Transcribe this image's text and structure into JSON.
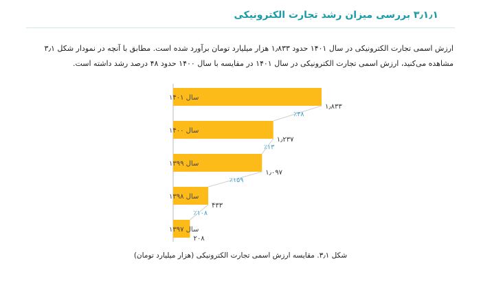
{
  "section": {
    "heading": "۳٫۱٫۱ بررسی میزان رشد تجارت الکترونیکی",
    "paragraph_line1": "ارزش اسمی تجارت الکترونیکی در سال ۱۴۰۱ حدود ۱٫۸۳۳ هزار میلیارد تومان برآورد شده است. مطابق با آنچه در نمودار شکل ۳٫۱",
    "paragraph_line2": "مشاهده می‌کنید، ارزش اسمی تجارت الکترونیکی در سال ۱۴۰۱ در مقایسه با سال ۱۴۰۰ حدود ۴۸ درصد رشد داشته است."
  },
  "colors": {
    "bar": "#fdbb1a",
    "growth": "#3a9bcc",
    "axis": "#b8b8b8",
    "connector": "#cfcfcf"
  },
  "chart_data": {
    "type": "bar",
    "orientation": "horizontal",
    "categories": [
      "سال ۱۴۰۱",
      "سال ۱۴۰۰",
      "سال ۱۳۹۹",
      "سال ۱۳۹۸",
      "سال ۱۳۹۷"
    ],
    "values": [
      1833,
      1237,
      1097,
      433,
      208
    ],
    "value_labels": [
      "۱٫۸۳۳",
      "۱٫۲۳۷",
      "۱٫۰۹۷",
      "۴۳۳",
      "۲۰۸"
    ],
    "growth_labels": [
      "٪۴۸",
      "٪۱۳",
      "٪۱۵۹",
      "٪۱۰۸"
    ],
    "xlim": [
      0,
      1833
    ],
    "grid": false,
    "caption": "شکل ۳٫۱. مقایسه ارزش اسمی تجارت الکترونیکی (هزار میلیارد تومان)"
  }
}
